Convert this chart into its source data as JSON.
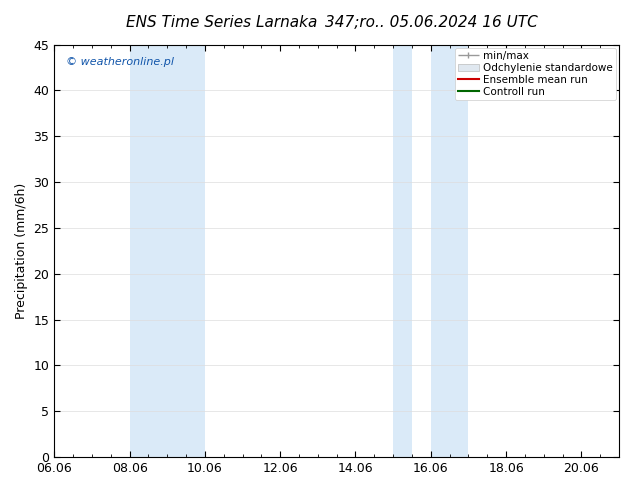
{
  "title_left": "ENS Time Series Larnaka",
  "title_right": "347;ro.. 05.06.2024 16 UTC",
  "ylabel": "Precipitation (mm/6h)",
  "ylim": [
    0,
    45
  ],
  "yticks": [
    0,
    5,
    10,
    15,
    20,
    25,
    30,
    35,
    40,
    45
  ],
  "xlim": [
    0,
    15
  ],
  "xtick_labels": [
    "06.06",
    "08.06",
    "10.06",
    "12.06",
    "14.06",
    "16.06",
    "18.06",
    "20.06"
  ],
  "xtick_positions": [
    0,
    2,
    4,
    6,
    8,
    10,
    12,
    14
  ],
  "shaded_bands": [
    {
      "xmin": 2.0,
      "xmax": 4.0
    },
    {
      "xmin": 9.0,
      "xmax": 9.5
    },
    {
      "xmin": 10.0,
      "xmax": 11.0
    }
  ],
  "shade_color": "#daeaf8",
  "watermark": "© weatheronline.pl",
  "background_color": "#ffffff",
  "plot_bg_color": "#ffffff",
  "title_fontsize": 11,
  "axis_fontsize": 9,
  "tick_fontsize": 9,
  "watermark_color": "#1155aa"
}
